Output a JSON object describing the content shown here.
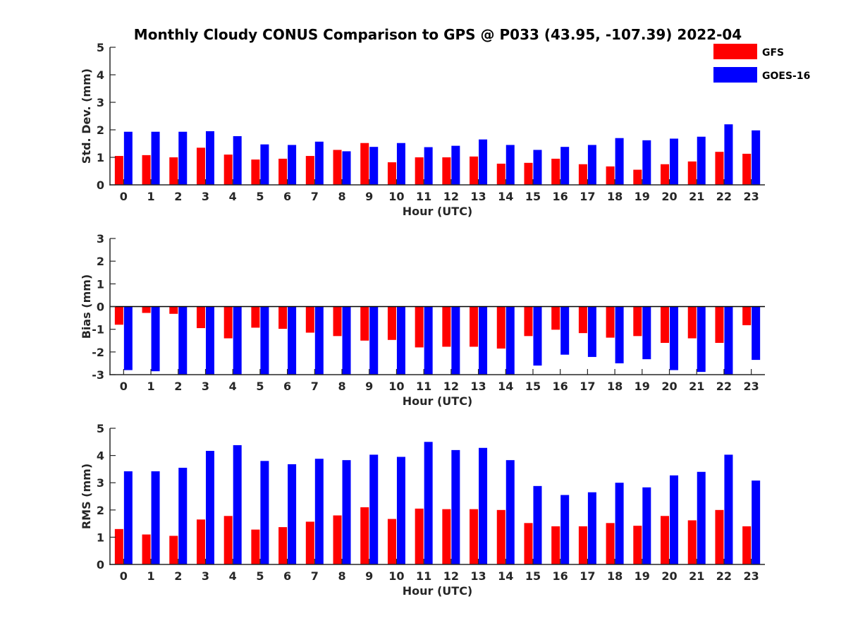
{
  "title": "Monthly Cloudy CONUS Comparison to GPS @ P033 (43.95, -107.39) 2022-04",
  "colors": {
    "GFS": "#ff0000",
    "GOES-16": "#0000ff",
    "axis": "#262626"
  },
  "legend": [
    "GFS",
    "GOES-16"
  ],
  "chart_data": [
    {
      "type": "bar",
      "id": "std",
      "xlabel": "Hour (UTC)",
      "ylabel": "Std. Dev. (mm)",
      "ylim": [
        0,
        5
      ],
      "yticks": [
        0,
        1,
        2,
        3,
        4,
        5
      ],
      "categories": [
        "0",
        "1",
        "2",
        "3",
        "4",
        "5",
        "6",
        "7",
        "8",
        "9",
        "10",
        "11",
        "12",
        "13",
        "14",
        "15",
        "16",
        "17",
        "18",
        "19",
        "20",
        "21",
        "22",
        "23"
      ],
      "series": [
        {
          "name": "GFS",
          "values": [
            1.05,
            1.08,
            1.0,
            1.35,
            1.1,
            0.92,
            0.95,
            1.05,
            1.27,
            1.52,
            0.82,
            1.0,
            1.0,
            1.03,
            0.77,
            0.8,
            0.95,
            0.75,
            0.67,
            0.55,
            0.75,
            0.85,
            1.2,
            1.13
          ]
        },
        {
          "name": "GOES-16",
          "values": [
            1.93,
            1.93,
            1.93,
            1.95,
            1.77,
            1.47,
            1.45,
            1.57,
            1.22,
            1.38,
            1.52,
            1.37,
            1.42,
            1.65,
            1.45,
            1.27,
            1.38,
            1.45,
            1.7,
            1.62,
            1.68,
            1.75,
            2.2,
            1.98
          ]
        }
      ]
    },
    {
      "type": "bar",
      "id": "bias",
      "xlabel": "Hour (UTC)",
      "ylabel": "Bias (mm)",
      "ylim": [
        -3,
        3
      ],
      "yticks": [
        -3,
        -2,
        -1,
        0,
        1,
        2,
        3
      ],
      "zero_line": true,
      "categories": [
        "0",
        "1",
        "2",
        "3",
        "4",
        "5",
        "6",
        "7",
        "8",
        "9",
        "10",
        "11",
        "12",
        "13",
        "14",
        "15",
        "16",
        "17",
        "18",
        "19",
        "20",
        "21",
        "22",
        "23"
      ],
      "series": [
        {
          "name": "GFS",
          "values": [
            -0.8,
            -0.28,
            -0.32,
            -0.95,
            -1.4,
            -0.93,
            -0.98,
            -1.15,
            -1.3,
            -1.5,
            -1.47,
            -1.8,
            -1.77,
            -1.77,
            -1.85,
            -1.3,
            -1.02,
            -1.17,
            -1.37,
            -1.3,
            -1.6,
            -1.4,
            -1.6,
            -0.82
          ]
        },
        {
          "name": "GOES-16",
          "values": [
            -2.8,
            -2.85,
            -3.0,
            -3.0,
            -3.0,
            -3.0,
            -3.0,
            -3.0,
            -3.0,
            -3.0,
            -3.0,
            -3.0,
            -3.0,
            -3.0,
            -3.0,
            -2.6,
            -2.12,
            -2.22,
            -2.5,
            -2.32,
            -2.8,
            -2.88,
            -3.0,
            -2.35
          ]
        }
      ]
    },
    {
      "type": "bar",
      "id": "rms",
      "xlabel": "Hour (UTC)",
      "ylabel": "RMS (mm)",
      "ylim": [
        0,
        5
      ],
      "yticks": [
        0,
        1,
        2,
        3,
        4,
        5
      ],
      "categories": [
        "0",
        "1",
        "2",
        "3",
        "4",
        "5",
        "6",
        "7",
        "8",
        "9",
        "10",
        "11",
        "12",
        "13",
        "14",
        "15",
        "16",
        "17",
        "18",
        "19",
        "20",
        "21",
        "22",
        "23"
      ],
      "series": [
        {
          "name": "GFS",
          "values": [
            1.3,
            1.1,
            1.05,
            1.65,
            1.78,
            1.28,
            1.37,
            1.57,
            1.8,
            2.1,
            1.67,
            2.05,
            2.03,
            2.03,
            2.0,
            1.52,
            1.4,
            1.4,
            1.52,
            1.42,
            1.78,
            1.62,
            2.0,
            1.4
          ]
        },
        {
          "name": "GOES-16",
          "values": [
            3.42,
            3.42,
            3.55,
            4.17,
            4.38,
            3.8,
            3.68,
            3.88,
            3.83,
            4.03,
            3.95,
            4.5,
            4.2,
            4.28,
            3.83,
            2.88,
            2.55,
            2.65,
            3.0,
            2.83,
            3.27,
            3.4,
            4.03,
            3.08
          ]
        }
      ]
    }
  ]
}
